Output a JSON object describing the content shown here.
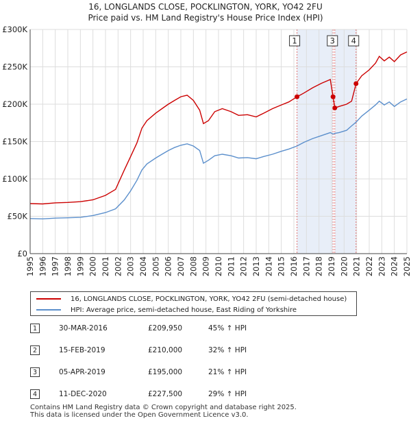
{
  "title": {
    "line1": "16, LONGLANDS CLOSE, POCKLINGTON, YORK, YO42 2FU",
    "line2": "Price paid vs. HM Land Registry's House Price Index (HPI)"
  },
  "colors": {
    "property": "#cc0000",
    "hpi": "#5b8fcc",
    "shade": "#e8eef8",
    "marker_line": "#e07070"
  },
  "chart_data": {
    "type": "line",
    "xlim": [
      1995,
      2025
    ],
    "ylim": [
      0,
      300000
    ],
    "y_ticks": [
      0,
      50000,
      100000,
      150000,
      200000,
      250000,
      300000
    ],
    "y_tick_labels": [
      "£0",
      "£50K",
      "£100K",
      "£150K",
      "£200K",
      "£250K",
      "£300K"
    ],
    "x_ticks": [
      1995,
      1996,
      1997,
      1998,
      1999,
      2000,
      2001,
      2002,
      2003,
      2004,
      2005,
      2006,
      2007,
      2008,
      2009,
      2010,
      2011,
      2012,
      2013,
      2014,
      2015,
      2016,
      2017,
      2018,
      2019,
      2020,
      2021,
      2022,
      2023,
      2024,
      2025
    ],
    "series": [
      {
        "name": "16, LONGLANDS CLOSE, POCKLINGTON, YORK, YO42 2FU (semi-detached house)",
        "color": "#cc0000",
        "points": [
          [
            1995.0,
            67000
          ],
          [
            1996.0,
            66500
          ],
          [
            1997.0,
            68000
          ],
          [
            1998.0,
            68500
          ],
          [
            1999.0,
            69500
          ],
          [
            2000.0,
            72000
          ],
          [
            2001.0,
            78000
          ],
          [
            2001.8,
            86000
          ],
          [
            2002.5,
            112000
          ],
          [
            2003.0,
            130000
          ],
          [
            2003.5,
            148000
          ],
          [
            2003.9,
            168000
          ],
          [
            2004.3,
            178000
          ],
          [
            2005.0,
            188000
          ],
          [
            2005.5,
            194000
          ],
          [
            2006.0,
            200000
          ],
          [
            2006.5,
            205000
          ],
          [
            2007.0,
            210000
          ],
          [
            2007.5,
            212000
          ],
          [
            2008.0,
            205000
          ],
          [
            2008.5,
            192000
          ],
          [
            2008.8,
            174000
          ],
          [
            2009.2,
            178000
          ],
          [
            2009.7,
            190000
          ],
          [
            2010.3,
            194000
          ],
          [
            2011.0,
            190000
          ],
          [
            2011.6,
            185000
          ],
          [
            2012.3,
            186000
          ],
          [
            2013.0,
            183000
          ],
          [
            2013.6,
            188000
          ],
          [
            2014.3,
            194000
          ],
          [
            2015.0,
            199000
          ],
          [
            2015.6,
            203000
          ],
          [
            2016.25,
            209950
          ],
          [
            2016.8,
            215000
          ],
          [
            2017.5,
            222000
          ],
          [
            2018.2,
            228000
          ],
          [
            2018.9,
            233000
          ],
          [
            2019.12,
            210000
          ],
          [
            2019.26,
            195000
          ],
          [
            2019.6,
            197000
          ],
          [
            2020.2,
            200000
          ],
          [
            2020.6,
            204000
          ],
          [
            2020.95,
            227500
          ],
          [
            2021.4,
            238000
          ],
          [
            2022.0,
            246000
          ],
          [
            2022.5,
            255000
          ],
          [
            2022.8,
            264000
          ],
          [
            2023.2,
            258000
          ],
          [
            2023.6,
            263000
          ],
          [
            2024.0,
            257000
          ],
          [
            2024.5,
            266000
          ],
          [
            2025.0,
            270000
          ]
        ]
      },
      {
        "name": "HPI: Average price, semi-detached house, East Riding of Yorkshire",
        "color": "#5b8fcc",
        "points": [
          [
            1995.0,
            47000
          ],
          [
            1996.0,
            46500
          ],
          [
            1997.0,
            47500
          ],
          [
            1998.0,
            48000
          ],
          [
            1999.0,
            48500
          ],
          [
            2000.0,
            51000
          ],
          [
            2001.0,
            55000
          ],
          [
            2001.8,
            60000
          ],
          [
            2002.5,
            72000
          ],
          [
            2003.0,
            84000
          ],
          [
            2003.5,
            98000
          ],
          [
            2003.9,
            112000
          ],
          [
            2004.3,
            120000
          ],
          [
            2005.0,
            128000
          ],
          [
            2005.5,
            133000
          ],
          [
            2006.0,
            138000
          ],
          [
            2006.5,
            142000
          ],
          [
            2007.0,
            145000
          ],
          [
            2007.5,
            147000
          ],
          [
            2008.0,
            144000
          ],
          [
            2008.5,
            138000
          ],
          [
            2008.8,
            121000
          ],
          [
            2009.2,
            125000
          ],
          [
            2009.7,
            131000
          ],
          [
            2010.3,
            133000
          ],
          [
            2011.0,
            131000
          ],
          [
            2011.6,
            128000
          ],
          [
            2012.3,
            128500
          ],
          [
            2013.0,
            127000
          ],
          [
            2013.6,
            130000
          ],
          [
            2014.3,
            133000
          ],
          [
            2015.0,
            137000
          ],
          [
            2015.6,
            140000
          ],
          [
            2016.25,
            144000
          ],
          [
            2016.8,
            149000
          ],
          [
            2017.5,
            154000
          ],
          [
            2018.2,
            158000
          ],
          [
            2018.9,
            162000
          ],
          [
            2019.12,
            160000
          ],
          [
            2019.26,
            161000
          ],
          [
            2019.6,
            162000
          ],
          [
            2020.2,
            165000
          ],
          [
            2020.6,
            171000
          ],
          [
            2020.95,
            176000
          ],
          [
            2021.4,
            184000
          ],
          [
            2022.0,
            192000
          ],
          [
            2022.5,
            199000
          ],
          [
            2022.8,
            204000
          ],
          [
            2023.2,
            199000
          ],
          [
            2023.6,
            203000
          ],
          [
            2024.0,
            197000
          ],
          [
            2024.5,
            203000
          ],
          [
            2025.0,
            207000
          ]
        ]
      }
    ],
    "markers": [
      {
        "label": "1",
        "year": 2016.25,
        "price": 209950
      },
      {
        "label": "2",
        "year": 2019.12,
        "price": 210000
      },
      {
        "label": "3",
        "year": 2019.26,
        "price": 195000
      },
      {
        "label": "4",
        "year": 2020.95,
        "price": 227500
      }
    ],
    "shaded_ranges": [
      [
        2016.25,
        2019.12
      ],
      [
        2019.26,
        2020.95
      ]
    ],
    "box_labels": [
      "1",
      "3",
      "4"
    ]
  },
  "legend": {
    "property": "16, LONGLANDS CLOSE, POCKLINGTON, YORK, YO42 2FU (semi-detached house)",
    "hpi": "HPI: Average price, semi-detached house, East Riding of Yorkshire"
  },
  "sales": [
    {
      "num": "1",
      "date": "30-MAR-2016",
      "price": "£209,950",
      "hpi": "45% ↑ HPI"
    },
    {
      "num": "2",
      "date": "15-FEB-2019",
      "price": "£210,000",
      "hpi": "32% ↑ HPI"
    },
    {
      "num": "3",
      "date": "05-APR-2019",
      "price": "£195,000",
      "hpi": "21% ↑ HPI"
    },
    {
      "num": "4",
      "date": "11-DEC-2020",
      "price": "£227,500",
      "hpi": "29% ↑ HPI"
    }
  ],
  "footer": {
    "line1": "Contains HM Land Registry data © Crown copyright and database right 2025.",
    "line2": "This data is licensed under the Open Government Licence v3.0."
  }
}
